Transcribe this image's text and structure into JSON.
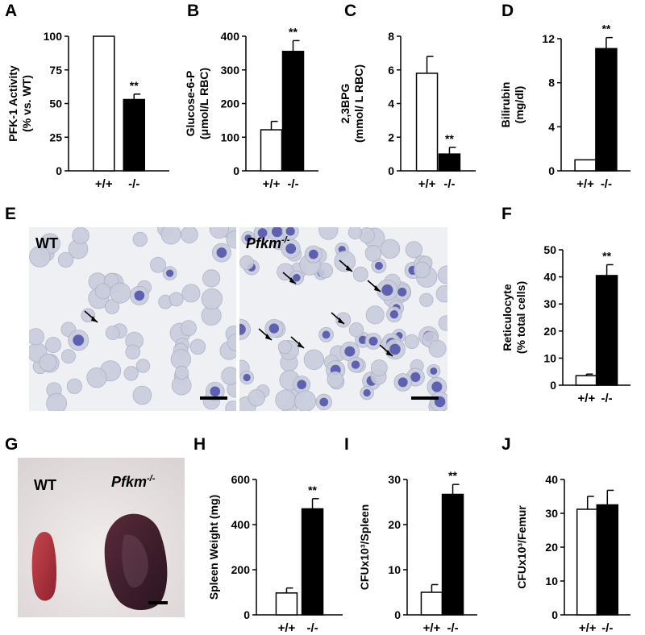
{
  "panel_letters": [
    "A",
    "B",
    "C",
    "D",
    "E",
    "F",
    "G",
    "H",
    "I",
    "J"
  ],
  "images": {
    "e_wt_label": "WT",
    "e_ko_label": "Pfkm",
    "e_ko_sup": "-/-",
    "g_wt_label": "WT",
    "g_ko_label": "Pfkm",
    "g_ko_sup": "-/-"
  },
  "colors": {
    "wt_bar": "#ffffff",
    "ko_bar": "#000000",
    "smear_bg": "#eef0f4",
    "cell": "#c9cddc",
    "stained": "#4a4ea8",
    "spleen_wt": "#b2323b",
    "spleen_ko": "#3b1d2a"
  },
  "chart_data": [
    {
      "id": "A",
      "type": "bar",
      "ylabel": [
        "PFK-1 Activity",
        "(% vs. WT)"
      ],
      "categories": [
        "+/+",
        "-/-"
      ],
      "values": [
        100,
        53
      ],
      "errors": [
        0,
        4
      ],
      "ylim": [
        0,
        100
      ],
      "yticks": [
        0,
        25,
        50,
        75,
        100
      ],
      "significance": [
        "",
        "**"
      ]
    },
    {
      "id": "B",
      "type": "bar",
      "ylabel": [
        "Glucose-6-P",
        "(μmol/L RBC)"
      ],
      "categories": [
        "+/+",
        "-/-"
      ],
      "values": [
        122,
        355
      ],
      "errors": [
        25,
        32
      ],
      "ylim": [
        0,
        400
      ],
      "yticks": [
        0,
        100,
        200,
        300,
        400
      ],
      "significance": [
        "",
        "**"
      ]
    },
    {
      "id": "C",
      "type": "bar",
      "ylabel": [
        "2,3BPG",
        "(mmol/ L RBC)"
      ],
      "categories": [
        "+/+",
        "-/-"
      ],
      "values": [
        5.8,
        1.0
      ],
      "errors": [
        1.0,
        0.4
      ],
      "ylim": [
        0,
        8
      ],
      "yticks": [
        0,
        2,
        4,
        6,
        8
      ],
      "significance": [
        "",
        "**"
      ]
    },
    {
      "id": "D",
      "type": "bar",
      "ylabel": [
        "Bilirubin",
        "(mg/dl)"
      ],
      "categories": [
        "+/+",
        "-/-"
      ],
      "values": [
        1.0,
        11.1
      ],
      "errors": [
        0,
        1.0
      ],
      "ylim": [
        0,
        12
      ],
      "yticks": [
        0,
        4,
        8,
        12
      ],
      "significance": [
        "",
        "**"
      ]
    },
    {
      "id": "F",
      "type": "bar",
      "ylabel": [
        "Reticulocyte",
        "(% total cells)"
      ],
      "categories": [
        "+/+",
        "-/-"
      ],
      "values": [
        3.5,
        40.5
      ],
      "errors": [
        0.6,
        4.0
      ],
      "ylim": [
        0,
        50
      ],
      "yticks": [
        0,
        10,
        20,
        30,
        40,
        50
      ],
      "significance": [
        "",
        "**"
      ]
    },
    {
      "id": "H",
      "type": "bar",
      "ylabel": [
        "Spleen Weight (mg)"
      ],
      "categories": [
        "+/+",
        "-/-"
      ],
      "values": [
        97,
        470
      ],
      "errors": [
        22,
        45
      ],
      "ylim": [
        0,
        600
      ],
      "yticks": [
        0,
        200,
        400,
        600
      ],
      "significance": [
        "",
        "**"
      ]
    },
    {
      "id": "I",
      "type": "bar",
      "ylabel": [
        "CFUx10³/Spleen"
      ],
      "categories": [
        "+/+",
        "-/-"
      ],
      "values": [
        5,
        26.7
      ],
      "errors": [
        1.7,
        2.2
      ],
      "ylim": [
        0,
        30
      ],
      "yticks": [
        0,
        10,
        20,
        30
      ],
      "significance": [
        "",
        "**"
      ]
    },
    {
      "id": "J",
      "type": "bar",
      "ylabel": [
        "CFUx10³/Femur"
      ],
      "categories": [
        "+/+",
        "-/-"
      ],
      "values": [
        31.2,
        32.5
      ],
      "errors": [
        3.8,
        4.3
      ],
      "ylim": [
        0,
        40
      ],
      "yticks": [
        0,
        10,
        20,
        30,
        40
      ],
      "significance": [
        "",
        ""
      ]
    }
  ]
}
